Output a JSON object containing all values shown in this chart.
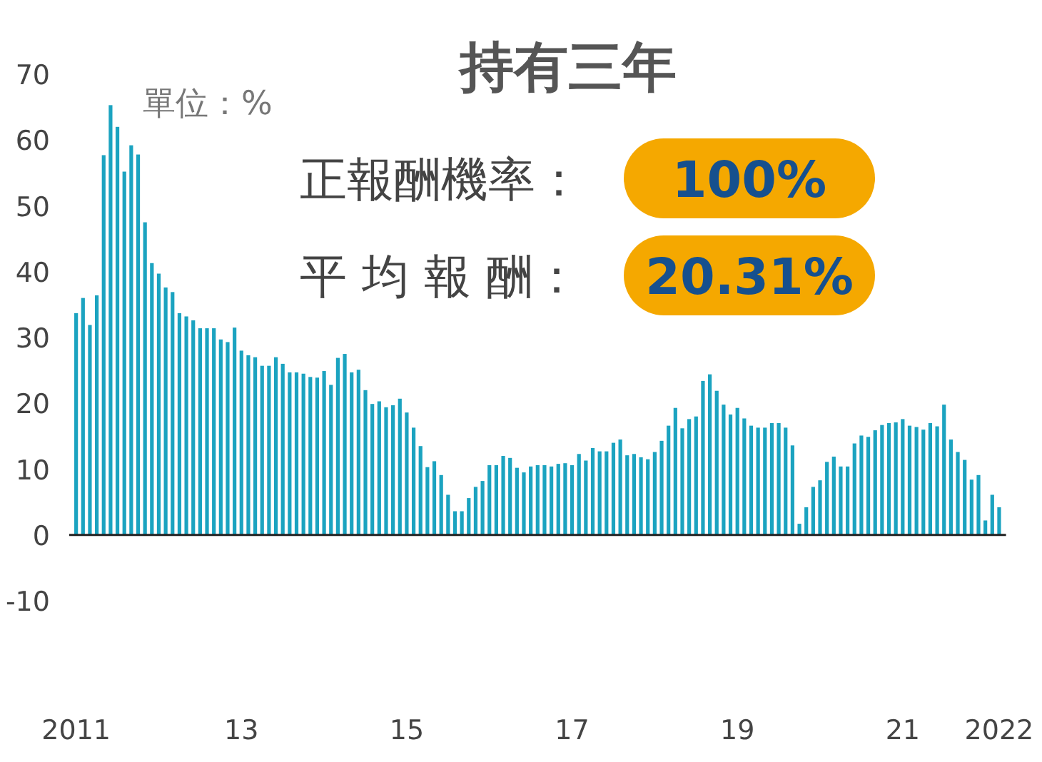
{
  "chart_data": {
    "type": "bar",
    "title": "持有三年",
    "ylabel": "單位：%",
    "annotations": [
      "正報酬機率：",
      "100%",
      "平 均 報 酬：",
      "20.31%"
    ],
    "x": [
      "2011-01",
      "2011-02",
      "2011-03",
      "2011-04",
      "2011-05",
      "2011-06",
      "2011-07",
      "2011-08",
      "2011-09",
      "2011-10",
      "2011-11",
      "2011-12",
      "2012-01",
      "2012-02",
      "2012-03",
      "2012-04",
      "2012-05",
      "2012-06",
      "2012-07",
      "2012-08",
      "2012-09",
      "2012-10",
      "2012-11",
      "2012-12",
      "2013-01",
      "2013-02",
      "2013-03",
      "2013-04",
      "2013-05",
      "2013-06",
      "2013-07",
      "2013-08",
      "2013-09",
      "2013-10",
      "2013-11",
      "2013-12",
      "2014-01",
      "2014-02",
      "2014-03",
      "2014-04",
      "2014-05",
      "2014-06",
      "2014-07",
      "2014-08",
      "2014-09",
      "2014-10",
      "2014-11",
      "2014-12",
      "2015-01",
      "2015-02",
      "2015-03",
      "2015-04",
      "2015-05",
      "2015-06",
      "2015-07",
      "2015-08",
      "2015-09",
      "2015-10",
      "2015-11",
      "2015-12",
      "2016-01",
      "2016-02",
      "2016-03",
      "2016-04",
      "2016-05",
      "2016-06",
      "2016-07",
      "2016-08",
      "2016-09",
      "2016-10",
      "2016-11",
      "2016-12",
      "2017-01",
      "2017-02",
      "2017-03",
      "2017-04",
      "2017-05",
      "2017-06",
      "2017-07",
      "2017-08",
      "2017-09",
      "2017-10",
      "2017-11",
      "2017-12",
      "2018-01",
      "2018-02",
      "2018-03",
      "2018-04",
      "2018-05",
      "2018-06",
      "2018-07",
      "2018-08",
      "2018-09",
      "2018-10",
      "2018-11",
      "2018-12",
      "2019-01",
      "2019-02",
      "2019-03",
      "2019-04",
      "2019-05",
      "2019-06",
      "2019-07",
      "2019-08",
      "2019-09",
      "2019-10",
      "2019-11",
      "2019-12",
      "2020-01",
      "2020-02",
      "2020-03",
      "2020-04",
      "2020-05",
      "2020-06",
      "2020-07",
      "2020-08",
      "2020-09",
      "2020-10",
      "2020-11",
      "2020-12",
      "2021-01",
      "2021-02",
      "2021-03",
      "2021-04",
      "2021-05",
      "2021-06",
      "2021-07",
      "2021-08",
      "2021-09",
      "2021-10",
      "2021-11",
      "2021-12",
      "2022-01",
      "2022-02",
      "2022-03"
    ],
    "series": [
      {
        "color": "#1ba3c0",
        "values": [
          33.7,
          36.0,
          31.9,
          36.4,
          57.7,
          65.3,
          62.0,
          55.2,
          59.2,
          57.8,
          47.5,
          41.3,
          39.7,
          37.6,
          36.9,
          33.7,
          33.2,
          32.6,
          31.4,
          31.4,
          31.4,
          29.7,
          29.3,
          31.5,
          28.0,
          27.3,
          27.0,
          25.7,
          25.7,
          27.0,
          26.0,
          24.7,
          24.7,
          24.5,
          24.0,
          23.9,
          24.9,
          22.8,
          26.9,
          27.5,
          24.7,
          25.1,
          22.0,
          19.9,
          20.3,
          19.4,
          19.7,
          20.7,
          18.6,
          16.3,
          13.5,
          10.3,
          11.2,
          9.1,
          6.1,
          3.6,
          3.6,
          5.6,
          7.3,
          8.2,
          10.6,
          10.6,
          12.0,
          11.7,
          10.2,
          9.5,
          10.4,
          10.6,
          10.6,
          10.4,
          10.8,
          10.9,
          10.6,
          12.3,
          11.3,
          13.2,
          12.7,
          12.7,
          14.0,
          14.5,
          12.1,
          12.3,
          11.8,
          11.5,
          12.6,
          14.3,
          16.6,
          19.3,
          16.2,
          17.6,
          18.0,
          23.4,
          24.4,
          21.9,
          19.8,
          18.3,
          19.3,
          17.7,
          16.6,
          16.3,
          16.3,
          17.0,
          17.0,
          16.3,
          13.6,
          1.7,
          4.2,
          7.3,
          8.3,
          11.1,
          11.9,
          10.4,
          10.4,
          13.9,
          15.1,
          14.9,
          15.9,
          16.7,
          17.0,
          17.1,
          17.6,
          16.6,
          16.4,
          16.0,
          17.0,
          16.5,
          19.8,
          14.5,
          12.6,
          11.4,
          8.4,
          9.1,
          2.2,
          6.1,
          4.2
        ]
      }
    ],
    "xlim": [
      "2010-12",
      "2022-04"
    ],
    "xticks": [
      {
        "value": "2011-01",
        "label": "2011"
      },
      {
        "value": "2013-01",
        "label": "13"
      },
      {
        "value": "2015-01",
        "label": "15"
      },
      {
        "value": "2017-01",
        "label": "17"
      },
      {
        "value": "2019-01",
        "label": "19"
      },
      {
        "value": "2021-01",
        "label": "21"
      },
      {
        "value": "2022-03",
        "label": "2022"
      }
    ],
    "ylim": [
      -10,
      70
    ],
    "yticks": [
      -10,
      0,
      10,
      20,
      30,
      40,
      50,
      60,
      70
    ]
  }
}
